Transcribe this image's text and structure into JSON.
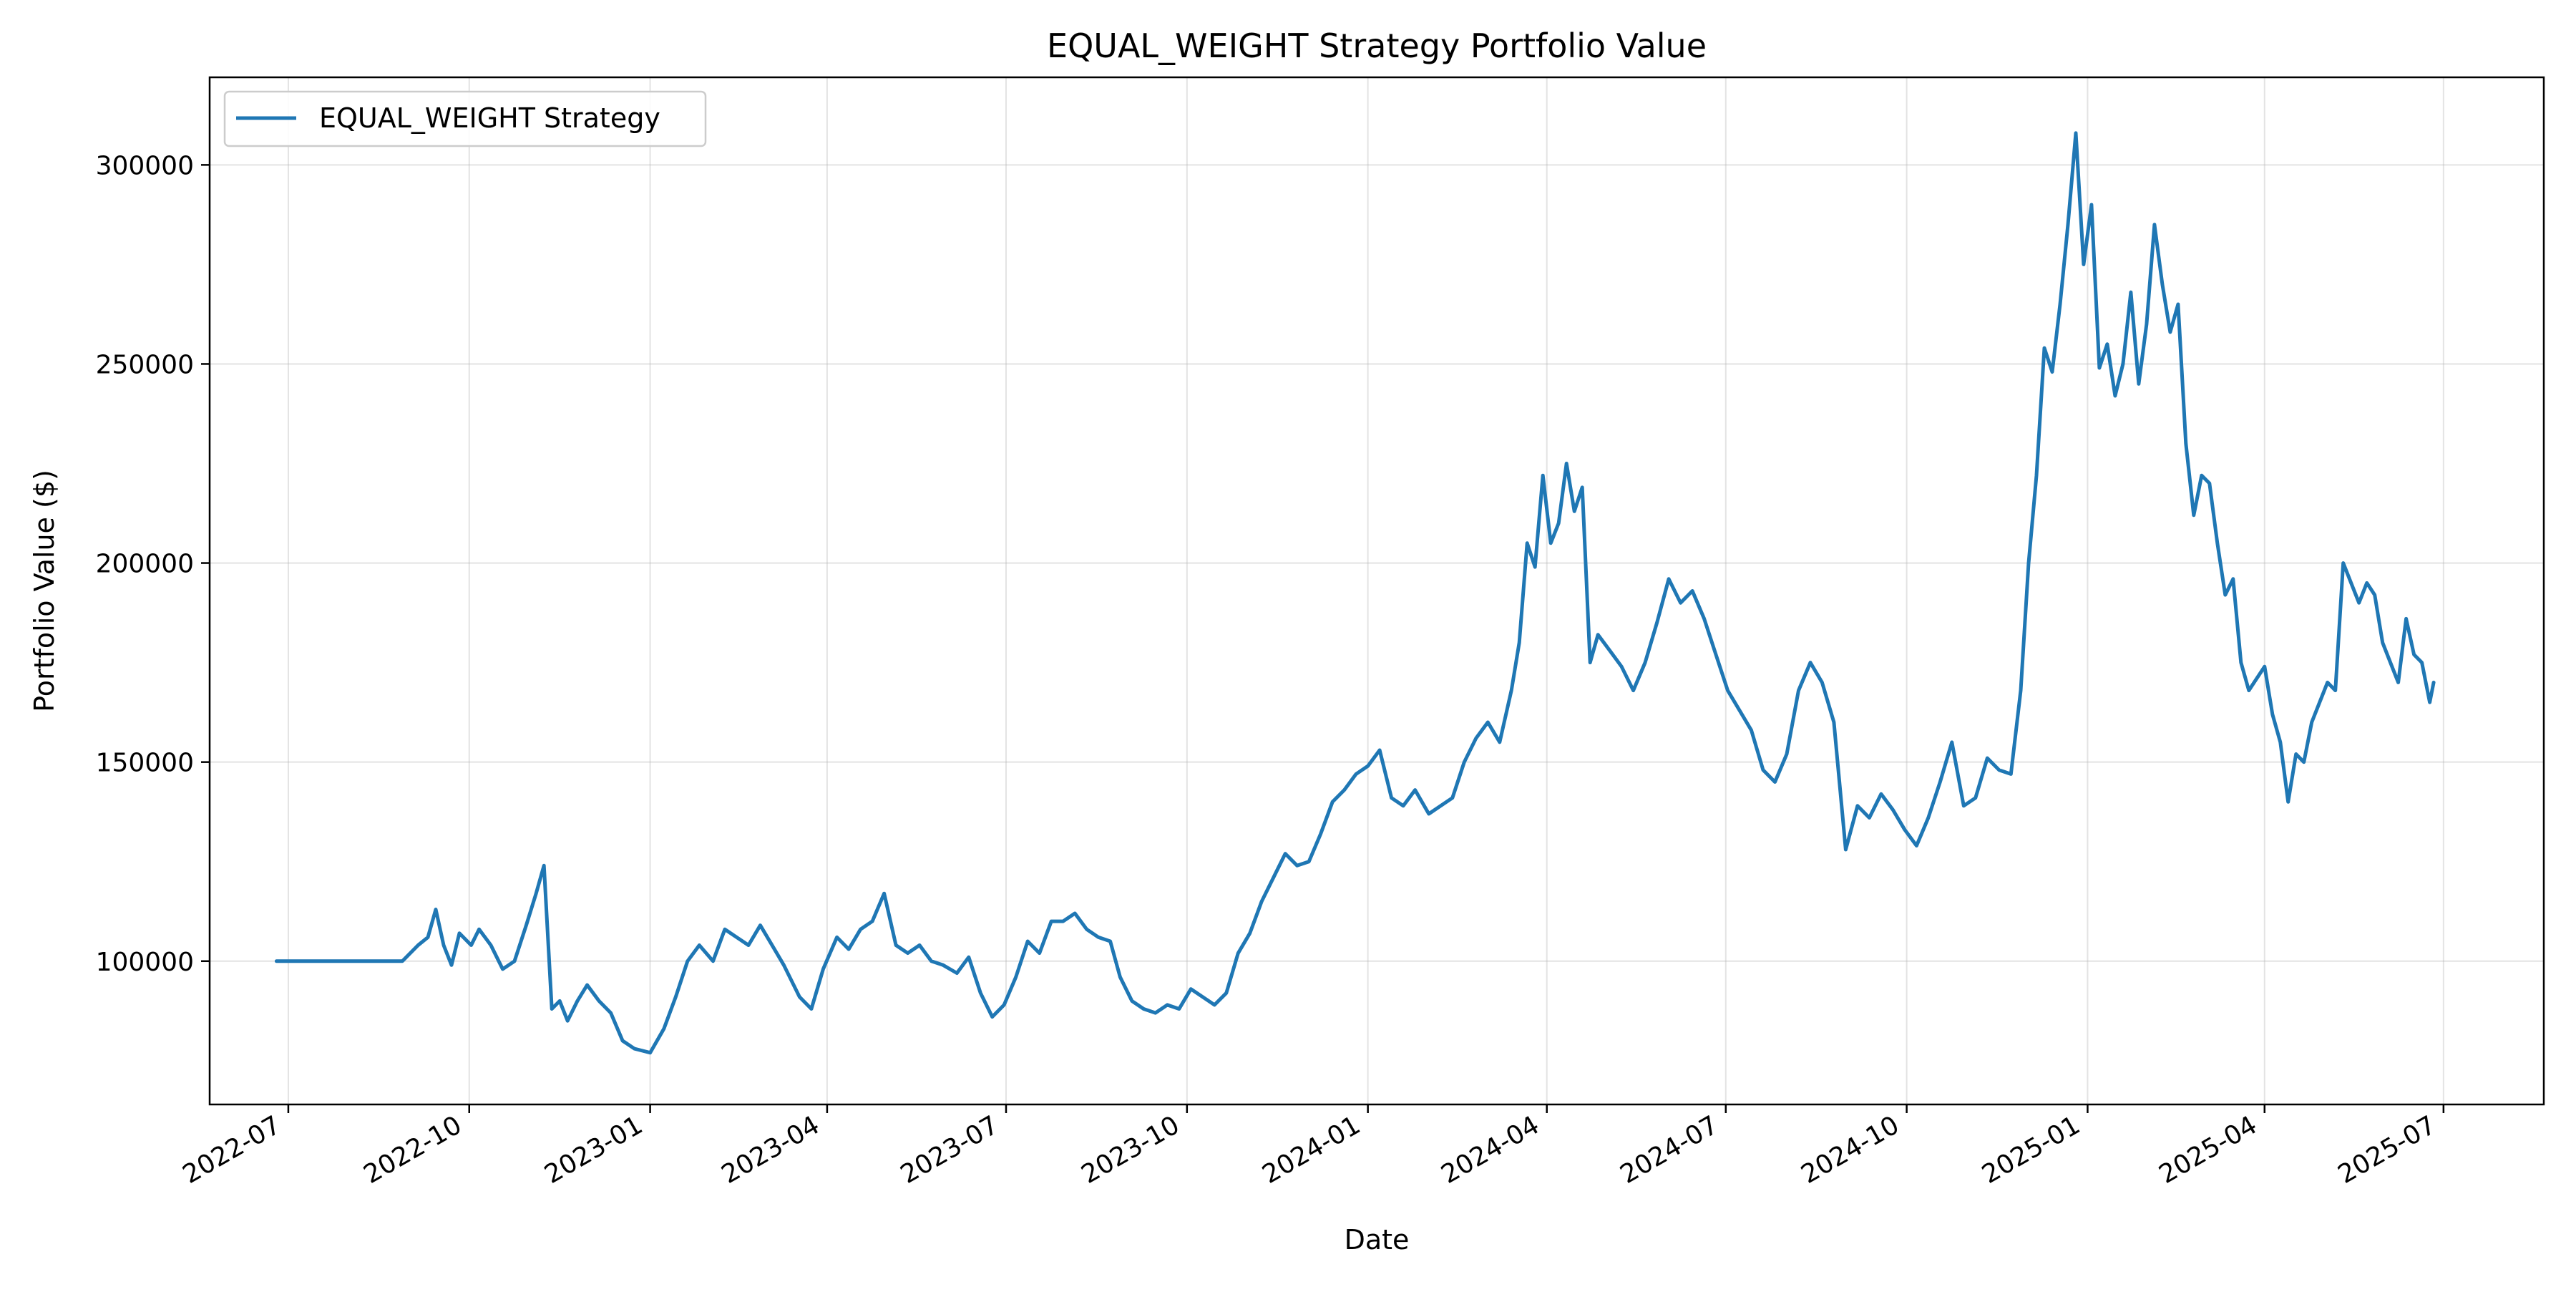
{
  "chart_data": {
    "type": "line",
    "title": "EQUAL_WEIGHT Strategy Portfolio Value",
    "xlabel": "Date",
    "ylabel": "Portfolio Value ($)",
    "x_axis": {
      "type": "date",
      "range": [
        "2022-05-22",
        "2025-08-21"
      ],
      "ticks": [
        "2022-07-01",
        "2022-10-01",
        "2023-01-01",
        "2023-04-01",
        "2023-07-01",
        "2023-10-01",
        "2024-01-01",
        "2024-04-01",
        "2024-07-01",
        "2024-10-01",
        "2025-01-01",
        "2025-04-01",
        "2025-07-01"
      ],
      "tick_labels": [
        "2022-07",
        "2022-10",
        "2023-01",
        "2023-04",
        "2023-07",
        "2023-10",
        "2024-01",
        "2024-04",
        "2024-07",
        "2024-10",
        "2025-01",
        "2025-04",
        "2025-07"
      ]
    },
    "y_axis": {
      "range": [
        64000,
        322000
      ],
      "ticks": [
        100000,
        150000,
        200000,
        250000,
        300000
      ],
      "tick_labels": [
        "100000",
        "150000",
        "200000",
        "250000",
        "300000"
      ]
    },
    "grid": true,
    "legend_placement": "top-left",
    "series": [
      {
        "name": "EQUAL_WEIGHT Strategy",
        "color": "#1f77b4",
        "points": [
          [
            "2022-06-25",
            100000
          ],
          [
            "2022-08-28",
            100000
          ],
          [
            "2022-09-05",
            104000
          ],
          [
            "2022-09-10",
            106000
          ],
          [
            "2022-09-14",
            113000
          ],
          [
            "2022-09-18",
            104000
          ],
          [
            "2022-09-22",
            99000
          ],
          [
            "2022-09-26",
            107000
          ],
          [
            "2022-10-02",
            104000
          ],
          [
            "2022-10-06",
            108000
          ],
          [
            "2022-10-12",
            104000
          ],
          [
            "2022-10-18",
            98000
          ],
          [
            "2022-10-24",
            100000
          ],
          [
            "2022-10-30",
            109000
          ],
          [
            "2022-11-04",
            117000
          ],
          [
            "2022-11-08",
            124000
          ],
          [
            "2022-11-12",
            88000
          ],
          [
            "2022-11-16",
            90000
          ],
          [
            "2022-11-20",
            85000
          ],
          [
            "2022-11-25",
            90000
          ],
          [
            "2022-11-30",
            94000
          ],
          [
            "2022-12-06",
            90000
          ],
          [
            "2022-12-12",
            87000
          ],
          [
            "2022-12-18",
            80000
          ],
          [
            "2022-12-24",
            78000
          ],
          [
            "2023-01-01",
            77000
          ],
          [
            "2023-01-08",
            83000
          ],
          [
            "2023-01-14",
            91000
          ],
          [
            "2023-01-20",
            100000
          ],
          [
            "2023-01-26",
            104000
          ],
          [
            "2023-02-02",
            100000
          ],
          [
            "2023-02-08",
            108000
          ],
          [
            "2023-02-14",
            106000
          ],
          [
            "2023-02-20",
            104000
          ],
          [
            "2023-02-26",
            109000
          ],
          [
            "2023-03-04",
            104000
          ],
          [
            "2023-03-10",
            99000
          ],
          [
            "2023-03-18",
            91000
          ],
          [
            "2023-03-24",
            88000
          ],
          [
            "2023-03-30",
            98000
          ],
          [
            "2023-04-06",
            106000
          ],
          [
            "2023-04-12",
            103000
          ],
          [
            "2023-04-18",
            108000
          ],
          [
            "2023-04-24",
            110000
          ],
          [
            "2023-04-30",
            117000
          ],
          [
            "2023-05-06",
            104000
          ],
          [
            "2023-05-12",
            102000
          ],
          [
            "2023-05-18",
            104000
          ],
          [
            "2023-05-24",
            100000
          ],
          [
            "2023-05-30",
            99000
          ],
          [
            "2023-06-06",
            97000
          ],
          [
            "2023-06-12",
            101000
          ],
          [
            "2023-06-18",
            92000
          ],
          [
            "2023-06-24",
            86000
          ],
          [
            "2023-06-30",
            89000
          ],
          [
            "2023-07-06",
            96000
          ],
          [
            "2023-07-12",
            105000
          ],
          [
            "2023-07-18",
            102000
          ],
          [
            "2023-07-24",
            110000
          ],
          [
            "2023-07-30",
            110000
          ],
          [
            "2023-08-05",
            112000
          ],
          [
            "2023-08-11",
            108000
          ],
          [
            "2023-08-17",
            106000
          ],
          [
            "2023-08-23",
            105000
          ],
          [
            "2023-08-28",
            96000
          ],
          [
            "2023-09-03",
            90000
          ],
          [
            "2023-09-09",
            88000
          ],
          [
            "2023-09-15",
            87000
          ],
          [
            "2023-09-21",
            89000
          ],
          [
            "2023-09-27",
            88000
          ],
          [
            "2023-10-03",
            93000
          ],
          [
            "2023-10-09",
            91000
          ],
          [
            "2023-10-15",
            89000
          ],
          [
            "2023-10-21",
            92000
          ],
          [
            "2023-10-27",
            102000
          ],
          [
            "2023-11-02",
            107000
          ],
          [
            "2023-11-08",
            115000
          ],
          [
            "2023-11-14",
            121000
          ],
          [
            "2023-11-20",
            127000
          ],
          [
            "2023-11-26",
            124000
          ],
          [
            "2023-12-02",
            125000
          ],
          [
            "2023-12-08",
            132000
          ],
          [
            "2023-12-14",
            140000
          ],
          [
            "2023-12-20",
            143000
          ],
          [
            "2023-12-26",
            147000
          ],
          [
            "2024-01-01",
            149000
          ],
          [
            "2024-01-07",
            153000
          ],
          [
            "2024-01-13",
            141000
          ],
          [
            "2024-01-19",
            139000
          ],
          [
            "2024-01-25",
            143000
          ],
          [
            "2024-02-01",
            137000
          ],
          [
            "2024-02-07",
            139000
          ],
          [
            "2024-02-13",
            141000
          ],
          [
            "2024-02-19",
            150000
          ],
          [
            "2024-02-25",
            156000
          ],
          [
            "2024-03-02",
            160000
          ],
          [
            "2024-03-08",
            155000
          ],
          [
            "2024-03-14",
            168000
          ],
          [
            "2024-03-18",
            180000
          ],
          [
            "2024-03-22",
            205000
          ],
          [
            "2024-03-26",
            199000
          ],
          [
            "2024-03-30",
            222000
          ],
          [
            "2024-04-03",
            205000
          ],
          [
            "2024-04-07",
            210000
          ],
          [
            "2024-04-11",
            225000
          ],
          [
            "2024-04-15",
            213000
          ],
          [
            "2024-04-19",
            219000
          ],
          [
            "2024-04-23",
            175000
          ],
          [
            "2024-04-27",
            182000
          ],
          [
            "2024-05-03",
            178000
          ],
          [
            "2024-05-09",
            174000
          ],
          [
            "2024-05-15",
            168000
          ],
          [
            "2024-05-21",
            175000
          ],
          [
            "2024-05-27",
            185000
          ],
          [
            "2024-06-02",
            196000
          ],
          [
            "2024-06-08",
            190000
          ],
          [
            "2024-06-14",
            193000
          ],
          [
            "2024-06-20",
            186000
          ],
          [
            "2024-06-26",
            177000
          ],
          [
            "2024-07-02",
            168000
          ],
          [
            "2024-07-08",
            163000
          ],
          [
            "2024-07-14",
            158000
          ],
          [
            "2024-07-20",
            148000
          ],
          [
            "2024-07-26",
            145000
          ],
          [
            "2024-08-01",
            152000
          ],
          [
            "2024-08-07",
            168000
          ],
          [
            "2024-08-13",
            175000
          ],
          [
            "2024-08-19",
            170000
          ],
          [
            "2024-08-25",
            160000
          ],
          [
            "2024-08-31",
            128000
          ],
          [
            "2024-09-06",
            139000
          ],
          [
            "2024-09-12",
            136000
          ],
          [
            "2024-09-18",
            142000
          ],
          [
            "2024-09-24",
            138000
          ],
          [
            "2024-09-30",
            133000
          ],
          [
            "2024-10-06",
            129000
          ],
          [
            "2024-10-12",
            136000
          ],
          [
            "2024-10-18",
            145000
          ],
          [
            "2024-10-24",
            155000
          ],
          [
            "2024-10-30",
            139000
          ],
          [
            "2024-11-05",
            141000
          ],
          [
            "2024-11-11",
            151000
          ],
          [
            "2024-11-17",
            148000
          ],
          [
            "2024-11-23",
            147000
          ],
          [
            "2024-11-28",
            168000
          ],
          [
            "2024-12-02",
            200000
          ],
          [
            "2024-12-06",
            222000
          ],
          [
            "2024-12-10",
            254000
          ],
          [
            "2024-12-14",
            248000
          ],
          [
            "2024-12-18",
            265000
          ],
          [
            "2024-12-22",
            285000
          ],
          [
            "2024-12-26",
            308000
          ],
          [
            "2024-12-30",
            275000
          ],
          [
            "2025-01-03",
            290000
          ],
          [
            "2025-01-07",
            249000
          ],
          [
            "2025-01-11",
            255000
          ],
          [
            "2025-01-15",
            242000
          ],
          [
            "2025-01-19",
            250000
          ],
          [
            "2025-01-23",
            268000
          ],
          [
            "2025-01-27",
            245000
          ],
          [
            "2025-01-31",
            260000
          ],
          [
            "2025-02-04",
            285000
          ],
          [
            "2025-02-08",
            270000
          ],
          [
            "2025-02-12",
            258000
          ],
          [
            "2025-02-16",
            265000
          ],
          [
            "2025-02-20",
            230000
          ],
          [
            "2025-02-24",
            212000
          ],
          [
            "2025-02-28",
            222000
          ],
          [
            "2025-03-04",
            220000
          ],
          [
            "2025-03-08",
            205000
          ],
          [
            "2025-03-12",
            192000
          ],
          [
            "2025-03-16",
            196000
          ],
          [
            "2025-03-20",
            175000
          ],
          [
            "2025-03-24",
            168000
          ],
          [
            "2025-03-28",
            171000
          ],
          [
            "2025-04-01",
            174000
          ],
          [
            "2025-04-05",
            162000
          ],
          [
            "2025-04-09",
            155000
          ],
          [
            "2025-04-13",
            140000
          ],
          [
            "2025-04-17",
            152000
          ],
          [
            "2025-04-21",
            150000
          ],
          [
            "2025-04-25",
            160000
          ],
          [
            "2025-04-29",
            165000
          ],
          [
            "2025-05-03",
            170000
          ],
          [
            "2025-05-07",
            168000
          ],
          [
            "2025-05-11",
            200000
          ],
          [
            "2025-05-15",
            195000
          ],
          [
            "2025-05-19",
            190000
          ],
          [
            "2025-05-23",
            195000
          ],
          [
            "2025-05-27",
            192000
          ],
          [
            "2025-05-31",
            180000
          ],
          [
            "2025-06-04",
            175000
          ],
          [
            "2025-06-08",
            170000
          ],
          [
            "2025-06-12",
            186000
          ],
          [
            "2025-06-16",
            177000
          ],
          [
            "2025-06-20",
            175000
          ],
          [
            "2025-06-24",
            165000
          ],
          [
            "2025-06-26",
            170000
          ]
        ]
      }
    ]
  }
}
